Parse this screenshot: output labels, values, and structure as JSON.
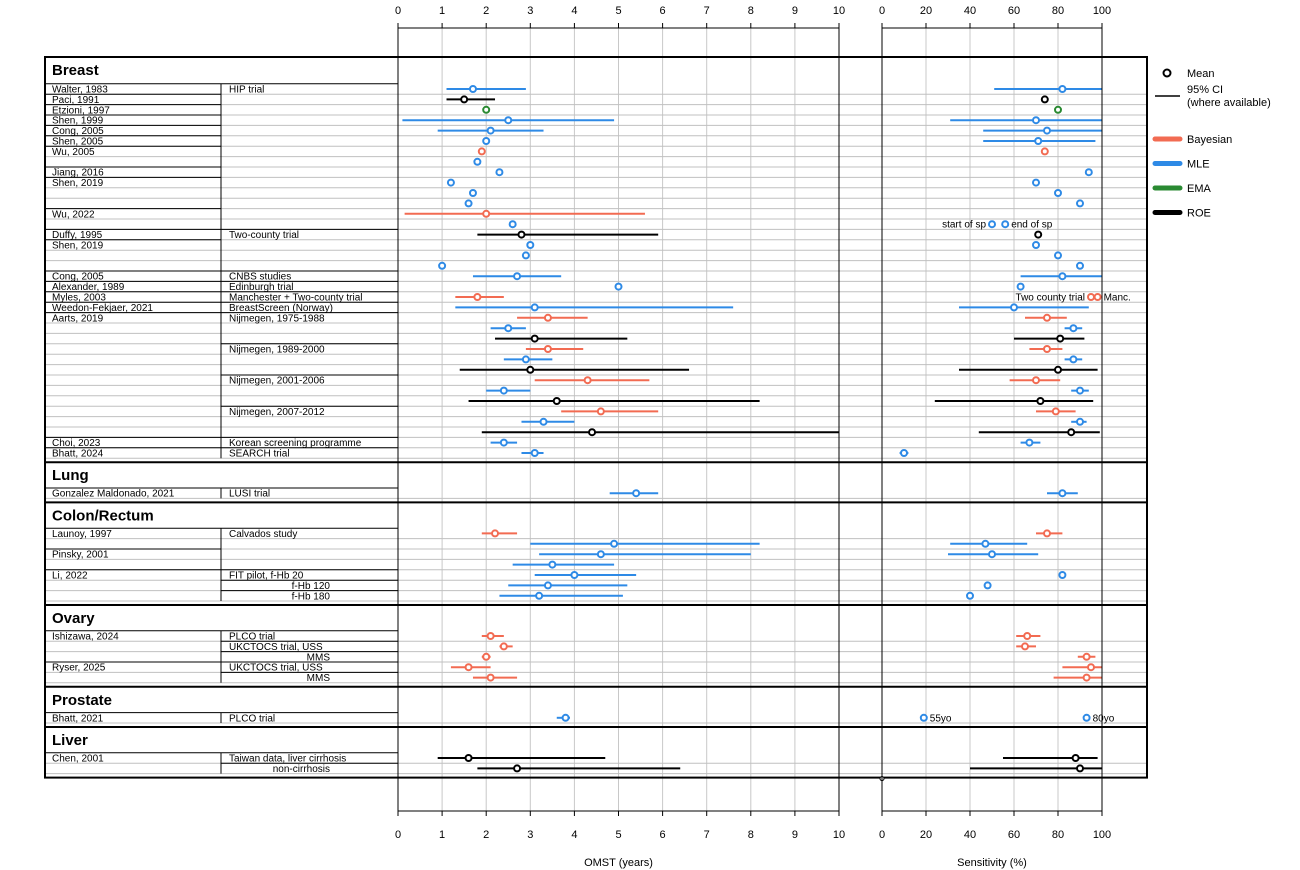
{
  "colors": {
    "Bayesian": "#f26b52",
    "MLE": "#2e8ae6",
    "EMA": "#2a8a32",
    "ROE": "#000000",
    "grid": "#c8c8c8",
    "row_line": "#c0c0c0"
  },
  "chart_data": {
    "type": "forest",
    "panels": [
      {
        "id": "omst",
        "xlabel": "OMST (years)",
        "xlim": [
          0,
          10
        ],
        "ticks": [
          0,
          1,
          2,
          3,
          4,
          5,
          6,
          7,
          8,
          9,
          10
        ]
      },
      {
        "id": "sens",
        "xlabel": "Sensitivity (%)",
        "xlim": [
          0,
          100
        ],
        "ticks": [
          0,
          20,
          40,
          60,
          80,
          100
        ]
      }
    ],
    "legend": [
      {
        "label": "Mean",
        "kind": "mean"
      },
      {
        "label": "95% CI\n(where available)",
        "kind": "ci"
      },
      {
        "label": "Bayesian",
        "kind": "method",
        "method": "Bayesian"
      },
      {
        "label": "MLE",
        "kind": "method",
        "method": "MLE"
      },
      {
        "label": "EMA",
        "kind": "method",
        "method": "EMA"
      },
      {
        "label": "ROE",
        "kind": "method",
        "method": "ROE"
      }
    ],
    "sections": [
      {
        "title": "Breast",
        "rows": [
          {
            "author": "Walter, 1983",
            "study": "HIP trial",
            "method": "MLE",
            "omst": [
              1.7,
              1.1,
              2.9
            ],
            "sens": [
              82,
              51,
              100
            ]
          },
          {
            "author": "Paci, 1991",
            "study": "",
            "method": "ROE",
            "omst": [
              1.5,
              1.1,
              2.2
            ],
            "sens": [
              74,
              null,
              null
            ]
          },
          {
            "author": "Etzioni, 1997",
            "study": "",
            "method": "EMA",
            "omst": [
              2.0,
              null,
              null
            ],
            "sens": [
              80,
              null,
              null
            ]
          },
          {
            "author": "Shen, 1999",
            "study": "",
            "method": "MLE",
            "omst": [
              2.5,
              0.1,
              4.9
            ],
            "sens": [
              70,
              31,
              100
            ]
          },
          {
            "author": "Cong, 2005",
            "study": "",
            "method": "MLE",
            "omst": [
              2.1,
              0.9,
              3.3
            ],
            "sens": [
              75,
              46,
              100
            ]
          },
          {
            "author": "Shen, 2005",
            "study": "",
            "method": "MLE",
            "omst": [
              2.0,
              null,
              null
            ],
            "sens": [
              71,
              46,
              97
            ]
          },
          {
            "author": "Wu, 2005",
            "study": "",
            "method": "Bayesian",
            "omst": [
              1.9,
              null,
              null
            ],
            "sens": [
              74,
              null,
              null
            ]
          },
          {
            "author": "",
            "study": "",
            "method": "MLE",
            "omst": [
              1.8,
              null,
              null
            ],
            "sens": null
          },
          {
            "author": "Jiang, 2016",
            "study": "",
            "method": "MLE",
            "omst": [
              2.3,
              null,
              null
            ],
            "sens": [
              94,
              null,
              null
            ]
          },
          {
            "author": "Shen, 2019",
            "study": "",
            "method": "MLE",
            "omst": [
              1.2,
              null,
              null
            ],
            "sens": [
              70,
              null,
              null
            ]
          },
          {
            "author": "",
            "study": "",
            "method": "MLE",
            "omst": [
              1.7,
              null,
              null
            ],
            "sens": [
              80,
              null,
              null
            ]
          },
          {
            "author": "",
            "study": "",
            "method": "MLE",
            "omst": [
              1.6,
              null,
              null
            ],
            "sens": [
              90,
              null,
              null
            ]
          },
          {
            "author": "Wu, 2022",
            "study": "",
            "method": "Bayesian",
            "omst": [
              2.0,
              0.15,
              5.6
            ],
            "sens": null
          },
          {
            "author": "",
            "study": "",
            "method": "MLE",
            "omst": [
              2.6,
              null,
              null
            ],
            "sens": null,
            "sens_markers": [
              50,
              56
            ]
          },
          {
            "author": "Duffy, 1995",
            "study": "Two-county trial",
            "method": "ROE",
            "omst": [
              2.8,
              1.8,
              5.9
            ],
            "sens": [
              71,
              null,
              null
            ]
          },
          {
            "author": "Shen, 2019",
            "study": "",
            "method": "MLE",
            "omst": [
              3.0,
              null,
              null
            ],
            "sens": [
              70,
              null,
              null
            ]
          },
          {
            "author": "",
            "study": "",
            "method": "MLE",
            "omst": [
              2.9,
              null,
              null
            ],
            "sens": [
              80,
              null,
              null
            ]
          },
          {
            "author": "",
            "study": "",
            "method": "MLE",
            "omst": [
              1.0,
              null,
              null
            ],
            "sens": [
              90,
              null,
              null
            ]
          },
          {
            "author": "Cong, 2005",
            "study": "CNBS studies",
            "method": "MLE",
            "omst": [
              2.7,
              1.7,
              3.7
            ],
            "sens": [
              82,
              63,
              100
            ]
          },
          {
            "author": "Alexander, 1989",
            "study": "Edinburgh trial",
            "method": "MLE",
            "omst": [
              5.0,
              null,
              null
            ],
            "sens": [
              63,
              null,
              null
            ]
          },
          {
            "author": "Myles, 2003",
            "study": "Manchester + Two-county trial",
            "method": "Bayesian",
            "omst": [
              1.8,
              1.3,
              2.4
            ],
            "sens": null,
            "sens_markers": [
              95,
              98
            ]
          },
          {
            "author": "Weedon-Fekjaer, 2021",
            "study": "BreastScreen (Norway)",
            "method": "MLE",
            "omst": [
              3.1,
              1.3,
              7.6
            ],
            "sens": [
              60,
              35,
              94
            ]
          },
          {
            "author": "Aarts, 2019",
            "study": "Nijmegen, 1975-1988",
            "method": "Bayesian",
            "omst": [
              3.4,
              2.7,
              4.3
            ],
            "sens": [
              75,
              65,
              84
            ]
          },
          {
            "author": "",
            "study": "",
            "method": "MLE",
            "omst": [
              2.5,
              2.1,
              2.9
            ],
            "sens": [
              87,
              83,
              91
            ]
          },
          {
            "author": "",
            "study": "",
            "method": "ROE",
            "omst": [
              3.1,
              2.2,
              5.2
            ],
            "sens": [
              81,
              60,
              92
            ]
          },
          {
            "author": "",
            "study": "Nijmegen, 1989-2000",
            "method": "Bayesian",
            "omst": [
              3.4,
              2.9,
              4.2
            ],
            "sens": [
              75,
              67,
              82
            ]
          },
          {
            "author": "",
            "study": "",
            "method": "MLE",
            "omst": [
              2.9,
              2.4,
              3.5
            ],
            "sens": [
              87,
              83,
              91
            ]
          },
          {
            "author": "",
            "study": "",
            "method": "ROE",
            "omst": [
              3.0,
              1.4,
              6.6
            ],
            "sens": [
              80,
              35,
              98
            ]
          },
          {
            "author": "",
            "study": "Nijmegen, 2001-2006",
            "method": "Bayesian",
            "omst": [
              4.3,
              3.1,
              5.7
            ],
            "sens": [
              70,
              58,
              81
            ]
          },
          {
            "author": "",
            "study": "",
            "method": "MLE",
            "omst": [
              2.4,
              2.0,
              3.0
            ],
            "sens": [
              90,
              86,
              94
            ]
          },
          {
            "author": "",
            "study": "",
            "method": "ROE",
            "omst": [
              3.6,
              1.6,
              8.2
            ],
            "sens": [
              72,
              24,
              96
            ]
          },
          {
            "author": "",
            "study": "Nijmegen, 2007-2012",
            "method": "Bayesian",
            "omst": [
              4.6,
              3.7,
              5.9
            ],
            "sens": [
              79,
              70,
              88
            ]
          },
          {
            "author": "",
            "study": "",
            "method": "MLE",
            "omst": [
              3.3,
              2.8,
              4.0
            ],
            "sens": [
              90,
              86,
              93
            ]
          },
          {
            "author": "",
            "study": "",
            "method": "ROE",
            "omst": [
              4.4,
              1.9,
              10.0
            ],
            "sens": [
              86,
              44,
              99
            ]
          },
          {
            "author": "Choi, 2023",
            "study": "Korean screening programme",
            "method": "MLE",
            "omst": [
              2.4,
              2.1,
              2.7
            ],
            "sens": [
              67,
              63,
              72
            ]
          },
          {
            "author": "Bhatt, 2024",
            "study": "SEARCH trial",
            "method": "MLE",
            "omst": [
              3.1,
              2.8,
              3.3
            ],
            "sens": [
              10,
              8,
              12
            ]
          }
        ]
      },
      {
        "title": "Lung",
        "rows": [
          {
            "author": "Gonzalez Maldonado, 2021",
            "study": "LUSI trial",
            "method": "MLE",
            "omst": [
              5.4,
              4.8,
              5.9
            ],
            "sens": [
              82,
              75,
              89
            ]
          }
        ]
      },
      {
        "title": "Colon/Rectum",
        "rows": [
          {
            "author": "Launoy, 1997",
            "study": "Calvados study",
            "method": "Bayesian",
            "omst": [
              2.2,
              1.9,
              2.7
            ],
            "sens": [
              75,
              70,
              82
            ]
          },
          {
            "author": "",
            "study": "",
            "method": "MLE",
            "omst": [
              4.9,
              3.0,
              8.2
            ],
            "sens": [
              47,
              31,
              66
            ]
          },
          {
            "author": "Pinsky, 2001",
            "study": "",
            "method": "MLE",
            "omst": [
              4.6,
              3.2,
              8.0
            ],
            "sens": [
              50,
              30,
              71
            ]
          },
          {
            "author": "",
            "study": "",
            "method": "MLE",
            "omst": [
              3.5,
              2.6,
              4.9
            ],
            "sens": null
          },
          {
            "author": "Li, 2022",
            "study": "FIT pilot, f-Hb 20",
            "method": "MLE",
            "omst": [
              4.0,
              3.1,
              5.4
            ],
            "sens": [
              82,
              null,
              null
            ]
          },
          {
            "author": "",
            "study": "f-Hb 120",
            "study_indent": true,
            "method": "MLE",
            "omst": [
              3.4,
              2.5,
              5.2
            ],
            "sens": [
              48,
              null,
              null
            ]
          },
          {
            "author": "",
            "study": "f-Hb 180",
            "study_indent": true,
            "method": "MLE",
            "omst": [
              3.2,
              2.3,
              5.1
            ],
            "sens": [
              40,
              null,
              null
            ]
          }
        ]
      },
      {
        "title": "Ovary",
        "rows": [
          {
            "author": "Ishizawa, 2024",
            "study": "PLCO trial",
            "method": "Bayesian",
            "omst": [
              2.1,
              1.9,
              2.4
            ],
            "sens": [
              66,
              61,
              72
            ]
          },
          {
            "author": "",
            "study": "UKCTOCS trial, USS",
            "method": "Bayesian",
            "omst": [
              2.4,
              2.3,
              2.6
            ],
            "sens": [
              65,
              61,
              70
            ]
          },
          {
            "author": "",
            "study": "MMS",
            "study_indent": true,
            "method": "Bayesian",
            "omst": [
              2.0,
              1.9,
              2.1
            ],
            "sens": [
              93,
              89,
              97
            ]
          },
          {
            "author": "Ryser, 2025",
            "study": "UKCTOCS trial, USS",
            "method": "Bayesian",
            "omst": [
              1.6,
              1.2,
              2.1
            ],
            "sens": [
              95,
              82,
              100
            ]
          },
          {
            "author": "",
            "study": "MMS",
            "study_indent": true,
            "method": "Bayesian",
            "omst": [
              2.1,
              1.7,
              2.7
            ],
            "sens": [
              93,
              78,
              100
            ]
          }
        ]
      },
      {
        "title": "Prostate",
        "rows": [
          {
            "author": "Bhatt, 2021",
            "study": "PLCO trial",
            "method": "MLE",
            "omst": [
              3.8,
              3.6,
              3.9
            ],
            "sens": null,
            "sens_markers": [
              19,
              93
            ]
          }
        ]
      },
      {
        "title": "Liver",
        "rows": [
          {
            "author": "Chen, 2001",
            "study": "Taiwan data, liver cirrhosis",
            "method": "ROE",
            "omst": [
              1.6,
              0.9,
              4.7
            ],
            "sens": [
              88,
              55,
              98
            ]
          },
          {
            "author": "",
            "study": "non-cirrhosis",
            "study_indent": true,
            "method": "ROE",
            "omst": [
              2.7,
              1.8,
              6.4
            ],
            "sens": [
              90,
              40,
              100
            ]
          }
        ]
      }
    ],
    "annotations": [
      {
        "panel": "sens",
        "section": 0,
        "row": 13,
        "x": 50,
        "text": "start of sp",
        "anchor": "end"
      },
      {
        "panel": "sens",
        "section": 0,
        "row": 13,
        "x": 56,
        "text": "end of sp",
        "anchor": "start"
      },
      {
        "panel": "sens",
        "section": 0,
        "row": 20,
        "x": 95,
        "text": "Two county trial",
        "anchor": "end"
      },
      {
        "panel": "sens",
        "section": 0,
        "row": 20,
        "x": 98,
        "text": "Manc.",
        "anchor": "start"
      },
      {
        "panel": "sens",
        "section": 4,
        "row": 0,
        "x": 19,
        "text": "55yo",
        "anchor": "start"
      },
      {
        "panel": "sens",
        "section": 4,
        "row": 0,
        "x": 93,
        "text": "80yo",
        "anchor": "start"
      }
    ]
  }
}
